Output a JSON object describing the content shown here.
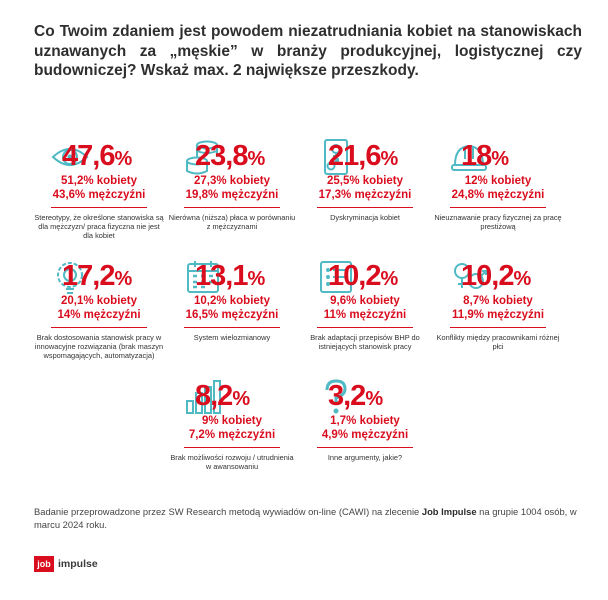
{
  "title": "Co Twoim zdaniem jest powodem niezatrudniania kobiet na stanowiskach uznawanych za „męskie” w branży produkcyjnej, logistycznej czy budowniczej? Wskaż max. 2 największe przeszkody.",
  "chart_data": {
    "type": "table",
    "title": "Co Twoim zdaniem jest powodem niezatrudniania kobiet na stanowiskach uznawanych za „męskie” w branży produkcyjnej, logistycznej czy budowniczej? Wskaż max. 2 największe przeszkody.",
    "unit": "%",
    "items": [
      {
        "value": "47,6",
        "women": "51,2% kobiety",
        "men": "43,6% mężczyźni",
        "label": "Stereotypy, że określone stanowiska są dla mężczyzn/ praca fizyczna nie jest dla kobiet",
        "icon": "eye-icon"
      },
      {
        "value": "23,8",
        "women": "27,3% kobiety",
        "men": "19,8% mężczyźni",
        "label": "Nierówna (niższa) płaca w porównaniu z mężczyznami",
        "icon": "coins-icon"
      },
      {
        "value": "21,6",
        "women": "25,5% kobiety",
        "men": "17,3% mężczyźni",
        "label": "Dyskryminacja kobiet",
        "icon": "gender-door-icon"
      },
      {
        "value": "18",
        "women": "12% kobiety",
        "men": "24,8% mężczyźni",
        "label": "Nieuznawanie pracy fizycznej za pracę prestiżową",
        "icon": "hard-hat-icon"
      },
      {
        "value": "17,2",
        "women": "20,1% kobiety",
        "men": "14% mężczyźni",
        "label": "Brak dostosowania stanowisk pracy w innowacyjne rozwiązania (brak maszyn wspomagających, automatyzacja)",
        "icon": "gear-bulb-icon"
      },
      {
        "value": "13,1",
        "women": "10,2% kobiety",
        "men": "16,5% mężczyźni",
        "label": "System wielozmianowy",
        "icon": "calendar-icon"
      },
      {
        "value": "10,2",
        "women": "9,6% kobiety",
        "men": "11% mężczyźni",
        "label": "Brak adaptacji przepisów BHP do istniejących stanowisk pracy",
        "icon": "document-list-icon"
      },
      {
        "value": "10,2",
        "women": "8,7% kobiety",
        "men": "11,9% mężczyźni",
        "label": "Konflikty między pracownikami różnej płci",
        "icon": "gender-symbols-icon"
      },
      {
        "value": "8,2",
        "women": "9% kobiety",
        "men": "7,2% mężczyźni",
        "label": "Brak możliwości rozwoju / utrudnienia w awansowaniu",
        "icon": "bar-chart-icon"
      },
      {
        "value": "3,2",
        "women": "1,7% kobiety",
        "men": "4,9% mężczyźni",
        "label": "Inne argumenty, jakie?",
        "icon": "question-icon"
      }
    ]
  },
  "footer": {
    "text_before": "Badanie przeprowadzone przez SW Research metodą wywiadów on-line (CAWI) na zlecenie ",
    "brand": "Job Impulse",
    "text_after": " na grupie 1004 osób, w marcu 2024 roku."
  },
  "logo": {
    "box": "job",
    "text": "impulse"
  },
  "colors": {
    "accent": "#d90d1e",
    "icon": "#4fb9c4",
    "text": "#2f2f2f"
  }
}
